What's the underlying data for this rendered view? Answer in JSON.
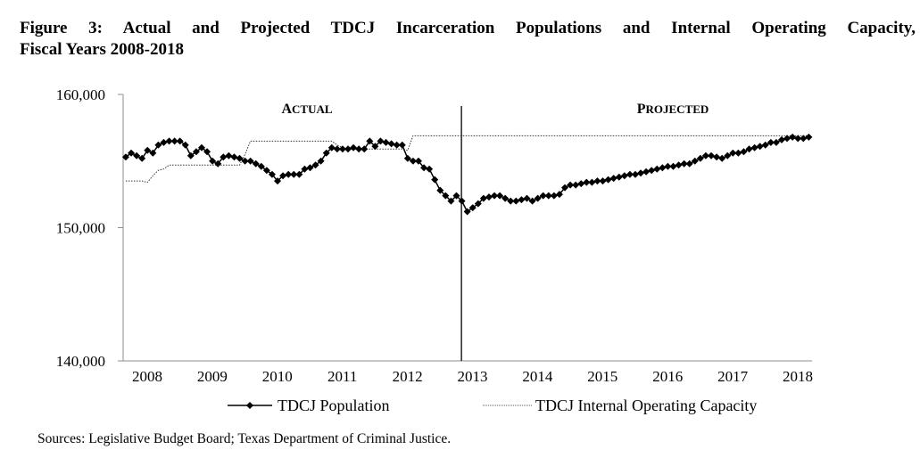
{
  "title_line1": "Figure 3: Actual and Projected TDCJ Incarceration Populations and Internal Operating Capacity,",
  "title_line2": "Fiscal Years 2008-2018",
  "sources": "Sources: Legislative Budget Board; Texas Department of Criminal Justice.",
  "chart_data": {
    "type": "line",
    "title": "Figure 3: Actual and Projected TDCJ Incarceration Populations and Internal Operating Capacity, Fiscal Years 2008-2018",
    "xlabel": "",
    "ylabel": "",
    "xlim": [
      2007.63,
      2018.25
    ],
    "ylim": [
      140000,
      160000
    ],
    "x_start": 2007.67,
    "x_step_years": 0.08333,
    "x_ticks": [
      "2008",
      "2009",
      "2010",
      "2011",
      "2012",
      "2013",
      "2014",
      "2015",
      "2016",
      "2017",
      "2018"
    ],
    "y_ticks": [
      "140,000",
      "150,000",
      "160,000"
    ],
    "y_tick_values": [
      140000,
      150000,
      160000
    ],
    "grid": false,
    "legend_position": "bottom",
    "annotations": [
      {
        "text": "Actual",
        "region": "left of divider"
      },
      {
        "text": "Projected",
        "region": "right of divider"
      }
    ],
    "divider_x": 2012.83,
    "series": [
      {
        "name": "TDCJ Population",
        "style": "solid with diamond markers",
        "color": "#000000",
        "values": [
          155300,
          155600,
          155400,
          155200,
          155800,
          155600,
          156200,
          156400,
          156500,
          156500,
          156500,
          156200,
          155400,
          155700,
          156000,
          155700,
          155000,
          154800,
          155300,
          155400,
          155300,
          155200,
          155000,
          155000,
          154800,
          154600,
          154300,
          154000,
          153500,
          153900,
          154000,
          154000,
          154000,
          154400,
          154500,
          154700,
          155000,
          155600,
          156000,
          155900,
          155900,
          155900,
          156000,
          155900,
          155900,
          156500,
          156100,
          156500,
          156400,
          156300,
          156200,
          156200,
          155200,
          155000,
          155000,
          154500,
          154400,
          153600,
          152800,
          152400,
          152000,
          152400,
          152000,
          151200,
          151500,
          151800,
          152200,
          152300,
          152400,
          152400,
          152200,
          152000,
          152000,
          152100,
          152200,
          152000,
          152200,
          152400,
          152400,
          152400,
          152500,
          153000,
          153200,
          153200,
          153300,
          153400,
          153400,
          153500,
          153500,
          153600,
          153700,
          153800,
          153900,
          154000,
          154000,
          154100,
          154200,
          154300,
          154400,
          154500,
          154600,
          154600,
          154700,
          154800,
          154800,
          155000,
          155200,
          155400,
          155400,
          155300,
          155200,
          155400,
          155600,
          155600,
          155700,
          155900,
          156000,
          156100,
          156200,
          156400,
          156400,
          156600,
          156700,
          156800,
          156700,
          156700,
          156800
        ]
      },
      {
        "name": "TDCJ Internal Operating Capacity",
        "style": "dotted",
        "color": "#000000",
        "values": [
          153500,
          153500,
          153500,
          153500,
          153400,
          153900,
          154300,
          154400,
          154700,
          154700,
          154700,
          154700,
          154700,
          154700,
          154700,
          154700,
          154700,
          154700,
          154700,
          154700,
          154700,
          154700,
          155500,
          156500,
          156500,
          156500,
          156500,
          156500,
          156500,
          156500,
          156500,
          156500,
          156500,
          156500,
          156500,
          156500,
          156500,
          156500,
          156500,
          156200,
          156000,
          155900,
          155900,
          155900,
          155900,
          155900,
          155900,
          155900,
          155900,
          155900,
          155900,
          155900,
          155800,
          156900,
          156900,
          156900,
          156900,
          156900,
          156900,
          156900,
          156900,
          156900,
          156900,
          156900,
          156900,
          156900,
          156900,
          156900,
          156900,
          156900,
          156900,
          156900,
          156900,
          156900,
          156900,
          156900,
          156900,
          156900,
          156900,
          156900,
          156900,
          156900,
          156900,
          156900,
          156900,
          156900,
          156900,
          156900,
          156900,
          156900,
          156900,
          156900,
          156900,
          156900,
          156900,
          156900,
          156900,
          156900,
          156900,
          156900,
          156900,
          156900,
          156900,
          156900,
          156900,
          156900,
          156900,
          156900,
          156900,
          156900,
          156900,
          156900,
          156900,
          156900,
          156900,
          156900,
          156900,
          156900,
          156900,
          156900,
          156900,
          156900,
          156900,
          156900,
          156900,
          156900,
          156900
        ]
      }
    ]
  }
}
